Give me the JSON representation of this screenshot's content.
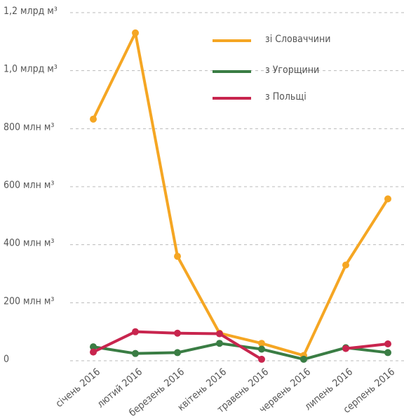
{
  "chart_data": {
    "type": "line",
    "categories": [
      "січень 2016",
      "лютий 2016",
      "березень 2016",
      "квітень 2016",
      "травень 2016",
      "червень 2016",
      "липень 2016",
      "серпень 2016"
    ],
    "series": [
      {
        "name": "зі Словаччини",
        "color": "#f5a623",
        "values": [
          833,
          1130,
          360,
          95,
          60,
          18,
          330,
          558
        ]
      },
      {
        "name": "з Угорщини",
        "color": "#3a7d44",
        "values": [
          48,
          25,
          28,
          60,
          40,
          5,
          45,
          28
        ]
      },
      {
        "name": "з Польщі",
        "color": "#c8254e",
        "values": [
          30,
          100,
          95,
          93,
          5,
          null,
          42,
          58
        ]
      }
    ],
    "ylim": [
      0,
      1200
    ],
    "yticks": [
      0,
      {
        "value": 200,
        "label": "200 млн м³"
      },
      {
        "value": 400,
        "label": "400 млн м³"
      },
      {
        "value": 600,
        "label": "600 млн м³"
      },
      {
        "value": 800,
        "label": "800 млн м³"
      },
      {
        "value": 1000,
        "label": "1,0 млрд м³"
      },
      {
        "value": 1200,
        "label": "1,2 млрд м³"
      }
    ],
    "grid": true,
    "legend": "upper right"
  }
}
